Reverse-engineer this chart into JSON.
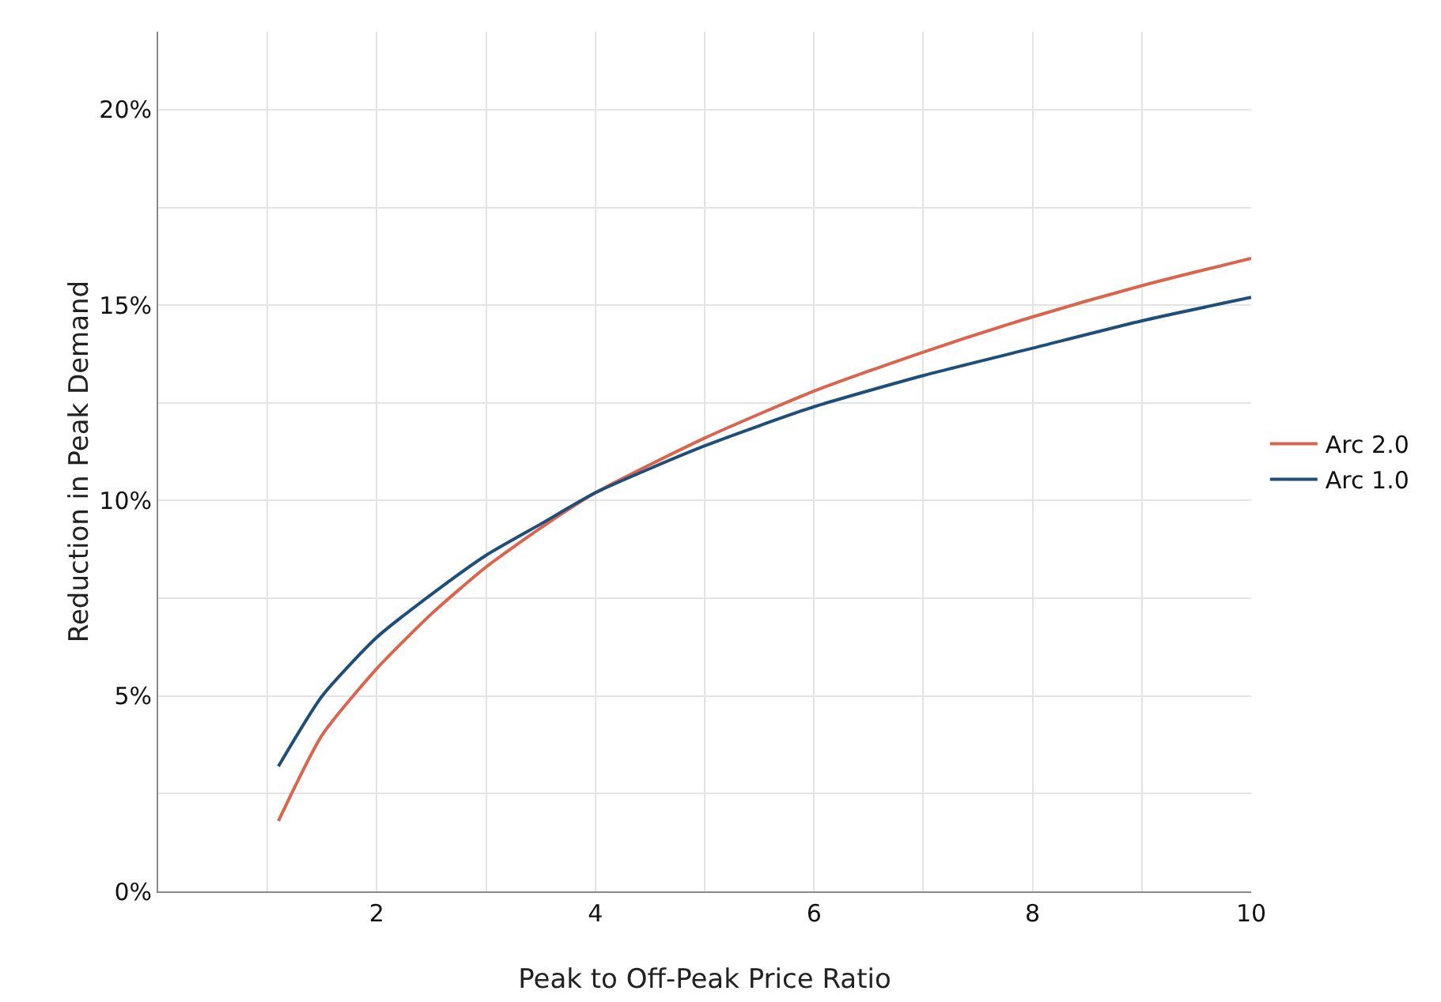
{
  "chart_data": {
    "type": "line",
    "xlabel": "Peak to Off-Peak Price Ratio",
    "ylabel": "Reduction in Peak Demand",
    "xlim": [
      0,
      10
    ],
    "ylim": [
      0,
      22
    ],
    "xticks": [
      {
        "value": 1,
        "label": null
      },
      2,
      {
        "value": 3,
        "label": null
      },
      4,
      {
        "value": 5,
        "label": null
      },
      6,
      {
        "value": 7,
        "label": null
      },
      8,
      {
        "value": 9,
        "label": null
      },
      10
    ],
    "yticks": [
      {
        "value": 0,
        "label": "0%"
      },
      {
        "value": 2.5,
        "label": null
      },
      {
        "value": 5,
        "label": "5%"
      },
      {
        "value": 7.5,
        "label": null
      },
      {
        "value": 10,
        "label": "10%"
      },
      {
        "value": 12.5,
        "label": null
      },
      {
        "value": 15,
        "label": "15%"
      },
      {
        "value": 17.5,
        "label": null
      },
      {
        "value": 20,
        "label": "20%"
      }
    ],
    "x": [
      1.1,
      1.5,
      2,
      2.5,
      3,
      3.5,
      4,
      5,
      6,
      7,
      8,
      9,
      10
    ],
    "series": [
      {
        "name": "Arc 2.0",
        "color": "#d9654f",
        "values": [
          1.8,
          4.0,
          5.7,
          7.1,
          8.3,
          9.3,
          10.2,
          11.6,
          12.8,
          13.8,
          14.7,
          15.5,
          16.2
        ]
      },
      {
        "name": "Arc 1.0",
        "color": "#1f4e79",
        "values": [
          3.2,
          5.0,
          6.5,
          7.6,
          8.6,
          9.4,
          10.2,
          11.4,
          12.4,
          13.2,
          13.9,
          14.6,
          15.2
        ]
      }
    ],
    "grid": true,
    "legend": "right",
    "marker": "none",
    "line_style": "solid"
  }
}
